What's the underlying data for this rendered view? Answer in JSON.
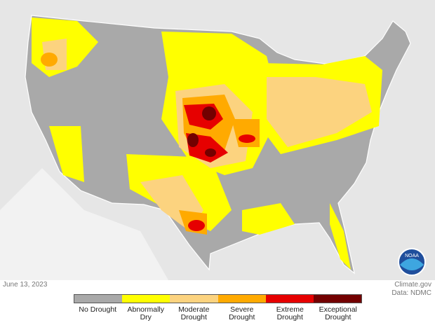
{
  "date": "June 13, 2023",
  "credit": "Climate.gov",
  "source": "Data: NDMC",
  "legend": [
    {
      "label": "No Drought",
      "color": "#a9a9a9"
    },
    {
      "label": "Abnormally Dry",
      "color": "#ffff00"
    },
    {
      "label": "Moderate Drought",
      "color": "#fcd37f"
    },
    {
      "label": "Severe Drought",
      "color": "#ffaa00"
    },
    {
      "label": "Extreme Drought",
      "color": "#e60000"
    },
    {
      "label": "Exceptional Drought",
      "color": "#730000"
    }
  ]
}
